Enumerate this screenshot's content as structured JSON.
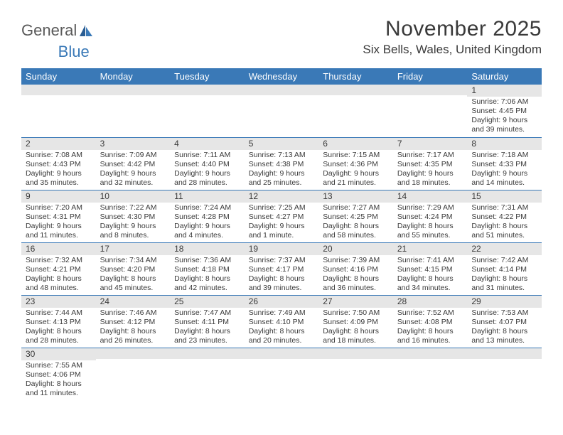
{
  "logo": {
    "word1": "General",
    "word2": "Blue"
  },
  "title": "November 2025",
  "location": "Six Bells, Wales, United Kingdom",
  "colors": {
    "header_bg": "#3a79b7",
    "header_text": "#ffffff",
    "daynum_bg": "#e6e6e6",
    "text": "#3a3a3a",
    "rule": "#3a79b7"
  },
  "day_headers": [
    "Sunday",
    "Monday",
    "Tuesday",
    "Wednesday",
    "Thursday",
    "Friday",
    "Saturday"
  ],
  "weeks": [
    [
      {
        "n": "",
        "lines": []
      },
      {
        "n": "",
        "lines": []
      },
      {
        "n": "",
        "lines": []
      },
      {
        "n": "",
        "lines": []
      },
      {
        "n": "",
        "lines": []
      },
      {
        "n": "",
        "lines": []
      },
      {
        "n": "1",
        "lines": [
          "Sunrise: 7:06 AM",
          "Sunset: 4:45 PM",
          "Daylight: 9 hours",
          "and 39 minutes."
        ]
      }
    ],
    [
      {
        "n": "2",
        "lines": [
          "Sunrise: 7:08 AM",
          "Sunset: 4:43 PM",
          "Daylight: 9 hours",
          "and 35 minutes."
        ]
      },
      {
        "n": "3",
        "lines": [
          "Sunrise: 7:09 AM",
          "Sunset: 4:42 PM",
          "Daylight: 9 hours",
          "and 32 minutes."
        ]
      },
      {
        "n": "4",
        "lines": [
          "Sunrise: 7:11 AM",
          "Sunset: 4:40 PM",
          "Daylight: 9 hours",
          "and 28 minutes."
        ]
      },
      {
        "n": "5",
        "lines": [
          "Sunrise: 7:13 AM",
          "Sunset: 4:38 PM",
          "Daylight: 9 hours",
          "and 25 minutes."
        ]
      },
      {
        "n": "6",
        "lines": [
          "Sunrise: 7:15 AM",
          "Sunset: 4:36 PM",
          "Daylight: 9 hours",
          "and 21 minutes."
        ]
      },
      {
        "n": "7",
        "lines": [
          "Sunrise: 7:17 AM",
          "Sunset: 4:35 PM",
          "Daylight: 9 hours",
          "and 18 minutes."
        ]
      },
      {
        "n": "8",
        "lines": [
          "Sunrise: 7:18 AM",
          "Sunset: 4:33 PM",
          "Daylight: 9 hours",
          "and 14 minutes."
        ]
      }
    ],
    [
      {
        "n": "9",
        "lines": [
          "Sunrise: 7:20 AM",
          "Sunset: 4:31 PM",
          "Daylight: 9 hours",
          "and 11 minutes."
        ]
      },
      {
        "n": "10",
        "lines": [
          "Sunrise: 7:22 AM",
          "Sunset: 4:30 PM",
          "Daylight: 9 hours",
          "and 8 minutes."
        ]
      },
      {
        "n": "11",
        "lines": [
          "Sunrise: 7:24 AM",
          "Sunset: 4:28 PM",
          "Daylight: 9 hours",
          "and 4 minutes."
        ]
      },
      {
        "n": "12",
        "lines": [
          "Sunrise: 7:25 AM",
          "Sunset: 4:27 PM",
          "Daylight: 9 hours",
          "and 1 minute."
        ]
      },
      {
        "n": "13",
        "lines": [
          "Sunrise: 7:27 AM",
          "Sunset: 4:25 PM",
          "Daylight: 8 hours",
          "and 58 minutes."
        ]
      },
      {
        "n": "14",
        "lines": [
          "Sunrise: 7:29 AM",
          "Sunset: 4:24 PM",
          "Daylight: 8 hours",
          "and 55 minutes."
        ]
      },
      {
        "n": "15",
        "lines": [
          "Sunrise: 7:31 AM",
          "Sunset: 4:22 PM",
          "Daylight: 8 hours",
          "and 51 minutes."
        ]
      }
    ],
    [
      {
        "n": "16",
        "lines": [
          "Sunrise: 7:32 AM",
          "Sunset: 4:21 PM",
          "Daylight: 8 hours",
          "and 48 minutes."
        ]
      },
      {
        "n": "17",
        "lines": [
          "Sunrise: 7:34 AM",
          "Sunset: 4:20 PM",
          "Daylight: 8 hours",
          "and 45 minutes."
        ]
      },
      {
        "n": "18",
        "lines": [
          "Sunrise: 7:36 AM",
          "Sunset: 4:18 PM",
          "Daylight: 8 hours",
          "and 42 minutes."
        ]
      },
      {
        "n": "19",
        "lines": [
          "Sunrise: 7:37 AM",
          "Sunset: 4:17 PM",
          "Daylight: 8 hours",
          "and 39 minutes."
        ]
      },
      {
        "n": "20",
        "lines": [
          "Sunrise: 7:39 AM",
          "Sunset: 4:16 PM",
          "Daylight: 8 hours",
          "and 36 minutes."
        ]
      },
      {
        "n": "21",
        "lines": [
          "Sunrise: 7:41 AM",
          "Sunset: 4:15 PM",
          "Daylight: 8 hours",
          "and 34 minutes."
        ]
      },
      {
        "n": "22",
        "lines": [
          "Sunrise: 7:42 AM",
          "Sunset: 4:14 PM",
          "Daylight: 8 hours",
          "and 31 minutes."
        ]
      }
    ],
    [
      {
        "n": "23",
        "lines": [
          "Sunrise: 7:44 AM",
          "Sunset: 4:13 PM",
          "Daylight: 8 hours",
          "and 28 minutes."
        ]
      },
      {
        "n": "24",
        "lines": [
          "Sunrise: 7:46 AM",
          "Sunset: 4:12 PM",
          "Daylight: 8 hours",
          "and 26 minutes."
        ]
      },
      {
        "n": "25",
        "lines": [
          "Sunrise: 7:47 AM",
          "Sunset: 4:11 PM",
          "Daylight: 8 hours",
          "and 23 minutes."
        ]
      },
      {
        "n": "26",
        "lines": [
          "Sunrise: 7:49 AM",
          "Sunset: 4:10 PM",
          "Daylight: 8 hours",
          "and 20 minutes."
        ]
      },
      {
        "n": "27",
        "lines": [
          "Sunrise: 7:50 AM",
          "Sunset: 4:09 PM",
          "Daylight: 8 hours",
          "and 18 minutes."
        ]
      },
      {
        "n": "28",
        "lines": [
          "Sunrise: 7:52 AM",
          "Sunset: 4:08 PM",
          "Daylight: 8 hours",
          "and 16 minutes."
        ]
      },
      {
        "n": "29",
        "lines": [
          "Sunrise: 7:53 AM",
          "Sunset: 4:07 PM",
          "Daylight: 8 hours",
          "and 13 minutes."
        ]
      }
    ],
    [
      {
        "n": "30",
        "lines": [
          "Sunrise: 7:55 AM",
          "Sunset: 4:06 PM",
          "Daylight: 8 hours",
          "and 11 minutes."
        ]
      },
      {
        "n": "",
        "lines": []
      },
      {
        "n": "",
        "lines": []
      },
      {
        "n": "",
        "lines": []
      },
      {
        "n": "",
        "lines": []
      },
      {
        "n": "",
        "lines": []
      },
      {
        "n": "",
        "lines": []
      }
    ]
  ]
}
